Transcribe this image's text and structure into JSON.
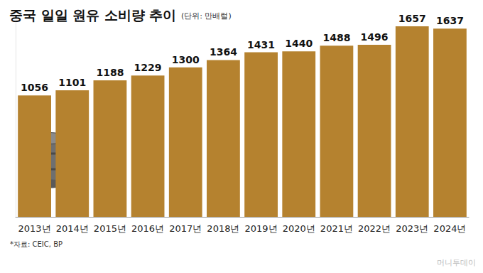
{
  "chart_data": {
    "type": "bar",
    "title": "중국 일일 원유 소비량 추이",
    "subtitle": "(단위: 만배럴)",
    "categories": [
      "2013년",
      "2014년",
      "2015년",
      "2016년",
      "2017년",
      "2018년",
      "2019년",
      "2020년",
      "2021년",
      "2022년",
      "2023년",
      "2024년"
    ],
    "values": [
      1056,
      1101,
      1188,
      1229,
      1300,
      1364,
      1431,
      1440,
      1488,
      1496,
      1657,
      1637
    ],
    "color": "#b5822f",
    "ylim": [
      0,
      1750
    ],
    "grid": false,
    "data_labels": true,
    "tick_labels": "x",
    "source": "*자료: CEIC, BP",
    "watermark": "머니투데이"
  }
}
